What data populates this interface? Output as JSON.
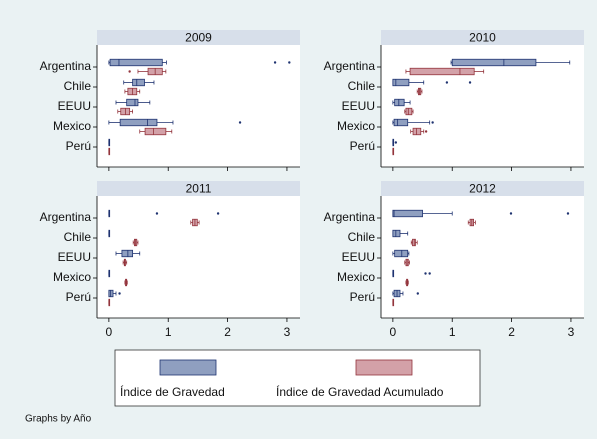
{
  "chart_data": [
    {
      "type": "box",
      "title": "2009",
      "categories": [
        "Argentina",
        "Chile",
        "EEUU",
        "Mexico",
        "Perú"
      ],
      "series": [
        {
          "boxes": [
            {
              "min": 0,
              "q1": 0.02,
              "median": 0.17,
              "q3": 0.9,
              "max": 0.97,
              "outliers": [
                2.8,
                3.04
              ]
            },
            {
              "min": 0.25,
              "q1": 0.4,
              "median": 0.47,
              "q3": 0.6,
              "max": 0.76,
              "outliers": []
            },
            {
              "min": 0.12,
              "q1": 0.3,
              "median": 0.44,
              "q3": 0.49,
              "max": 0.69,
              "outliers": []
            },
            {
              "min": 0,
              "q1": 0.19,
              "median": 0.65,
              "q3": 0.81,
              "max": 1.08,
              "outliers": [
                2.21
              ]
            },
            {
              "min": 0,
              "q1": 0,
              "median": 0,
              "q3": 0,
              "max": 0,
              "outliers": []
            }
          ]
        },
        {
          "boxes": [
            {
              "min": 0.49,
              "q1": 0.66,
              "median": 0.78,
              "q3": 0.9,
              "max": 0.96,
              "outliers": [
                0.35
              ]
            },
            {
              "min": 0.27,
              "q1": 0.32,
              "median": 0.4,
              "q3": 0.47,
              "max": 0.52,
              "outliers": []
            },
            {
              "min": 0.15,
              "q1": 0.2,
              "median": 0.28,
              "q3": 0.35,
              "max": 0.4,
              "outliers": []
            },
            {
              "min": 0.52,
              "q1": 0.61,
              "median": 0.75,
              "q3": 0.96,
              "max": 1.06,
              "outliers": []
            },
            {
              "min": 0,
              "q1": 0,
              "median": 0,
              "q3": 0,
              "max": 0,
              "outliers": []
            }
          ]
        }
      ]
    },
    {
      "type": "box",
      "title": "2010",
      "categories": [
        "Argentina",
        "Chile",
        "EEUU",
        "Mexico",
        "Perú"
      ],
      "series": [
        {
          "boxes": [
            {
              "min": 0.98,
              "q1": 1.0,
              "median": 1.87,
              "q3": 2.41,
              "max": 2.98,
              "outliers": []
            },
            {
              "min": 0,
              "q1": 0,
              "median": 0.05,
              "q3": 0.27,
              "max": 0.52,
              "outliers": [
                0.91,
                1.3
              ]
            },
            {
              "min": 0,
              "q1": 0.03,
              "median": 0.1,
              "q3": 0.19,
              "max": 0.29,
              "outliers": []
            },
            {
              "min": 0,
              "q1": 0.02,
              "median": 0.08,
              "q3": 0.25,
              "max": 0.62,
              "outliers": [
                0.67
              ]
            },
            {
              "min": 0,
              "q1": 0,
              "median": 0,
              "q3": 0,
              "max": 0,
              "outliers": [
                0.05
              ]
            }
          ]
        },
        {
          "boxes": [
            {
              "min": 0.22,
              "q1": 0.29,
              "median": 1.13,
              "q3": 1.37,
              "max": 1.53,
              "outliers": []
            },
            {
              "min": 0.41,
              "q1": 0.43,
              "median": 0.45,
              "q3": 0.47,
              "max": 0.49,
              "outliers": []
            },
            {
              "min": 0.2,
              "q1": 0.22,
              "median": 0.26,
              "q3": 0.32,
              "max": 0.34,
              "outliers": []
            },
            {
              "min": 0.3,
              "q1": 0.34,
              "median": 0.4,
              "q3": 0.47,
              "max": 0.52,
              "outliers": [
                0.56
              ]
            },
            {
              "min": 0,
              "q1": 0,
              "median": 0,
              "q3": 0,
              "max": 0,
              "outliers": []
            }
          ]
        }
      ]
    },
    {
      "type": "box",
      "title": "2011",
      "categories": [
        "Argentina",
        "Chile",
        "EEUU",
        "Mexico",
        "Perú"
      ],
      "series": [
        {
          "boxes": [
            {
              "min": 0,
              "q1": 0,
              "median": 0,
              "q3": 0,
              "max": 0,
              "outliers": [
                0.81,
                1.84
              ]
            },
            {
              "min": 0,
              "q1": 0,
              "median": 0,
              "q3": 0,
              "max": 0,
              "outliers": []
            },
            {
              "min": 0.12,
              "q1": 0.22,
              "median": 0.32,
              "q3": 0.4,
              "max": 0.52,
              "outliers": []
            },
            {
              "min": 0,
              "q1": 0,
              "median": 0,
              "q3": 0,
              "max": 0,
              "outliers": []
            },
            {
              "min": 0,
              "q1": 0,
              "median": 0.03,
              "q3": 0.07,
              "max": 0.12,
              "outliers": [
                0.18
              ]
            }
          ]
        },
        {
          "boxes": [
            {
              "min": 1.38,
              "q1": 1.41,
              "median": 1.45,
              "q3": 1.49,
              "max": 1.52,
              "outliers": []
            },
            {
              "min": 0.41,
              "q1": 0.43,
              "median": 0.45,
              "q3": 0.47,
              "max": 0.49,
              "outliers": []
            },
            {
              "min": 0.24,
              "q1": 0.26,
              "median": 0.27,
              "q3": 0.28,
              "max": 0.3,
              "outliers": []
            },
            {
              "min": 0.27,
              "q1": 0.28,
              "median": 0.29,
              "q3": 0.3,
              "max": 0.31,
              "outliers": []
            },
            {
              "min": 0,
              "q1": 0,
              "median": 0,
              "q3": 0,
              "max": 0,
              "outliers": []
            }
          ]
        }
      ]
    },
    {
      "type": "box",
      "title": "2012",
      "categories": [
        "Argentina",
        "Chile",
        "EEUU",
        "Mexico",
        "Perú"
      ],
      "series": [
        {
          "boxes": [
            {
              "min": 0,
              "q1": 0,
              "median": 0.02,
              "q3": 0.5,
              "max": 1.0,
              "outliers": [
                1.99,
                2.95
              ]
            },
            {
              "min": 0,
              "q1": 0,
              "median": 0.05,
              "q3": 0.12,
              "max": 0.25,
              "outliers": []
            },
            {
              "min": 0,
              "q1": 0.03,
              "median": 0.15,
              "q3": 0.25,
              "max": 0.27,
              "outliers": []
            },
            {
              "min": 0,
              "q1": 0,
              "median": 0,
              "q3": 0,
              "max": 0,
              "outliers": [
                0.55,
                0.62
              ]
            },
            {
              "min": 0,
              "q1": 0.02,
              "median": 0.07,
              "q3": 0.12,
              "max": 0.17,
              "outliers": [
                0.42
              ]
            }
          ]
        },
        {
          "boxes": [
            {
              "min": 1.27,
              "q1": 1.3,
              "median": 1.33,
              "q3": 1.36,
              "max": 1.39,
              "outliers": []
            },
            {
              "min": 0.31,
              "q1": 0.33,
              "median": 0.36,
              "q3": 0.38,
              "max": 0.41,
              "outliers": []
            },
            {
              "min": 0.2,
              "q1": 0.22,
              "median": 0.24,
              "q3": 0.26,
              "max": 0.28,
              "outliers": []
            },
            {
              "min": 0.22,
              "q1": 0.23,
              "median": 0.24,
              "q3": 0.25,
              "max": 0.26,
              "outliers": []
            },
            {
              "min": 0,
              "q1": 0,
              "median": 0,
              "q3": 0,
              "max": 0,
              "outliers": []
            }
          ]
        }
      ]
    }
  ],
  "xaxis": {
    "xlim": [
      -0.2,
      3.22
    ],
    "xticks": [
      0,
      1,
      2,
      3
    ]
  },
  "legend": [
    {
      "name": "Índice de Gravedad",
      "color": "#8f9fc0",
      "line_color": "#1f3370"
    },
    {
      "name": "Índice de Gravedad Acumulado",
      "color": "#d3a1a8",
      "line_color": "#93343c"
    }
  ],
  "note": "Graphs by Año"
}
